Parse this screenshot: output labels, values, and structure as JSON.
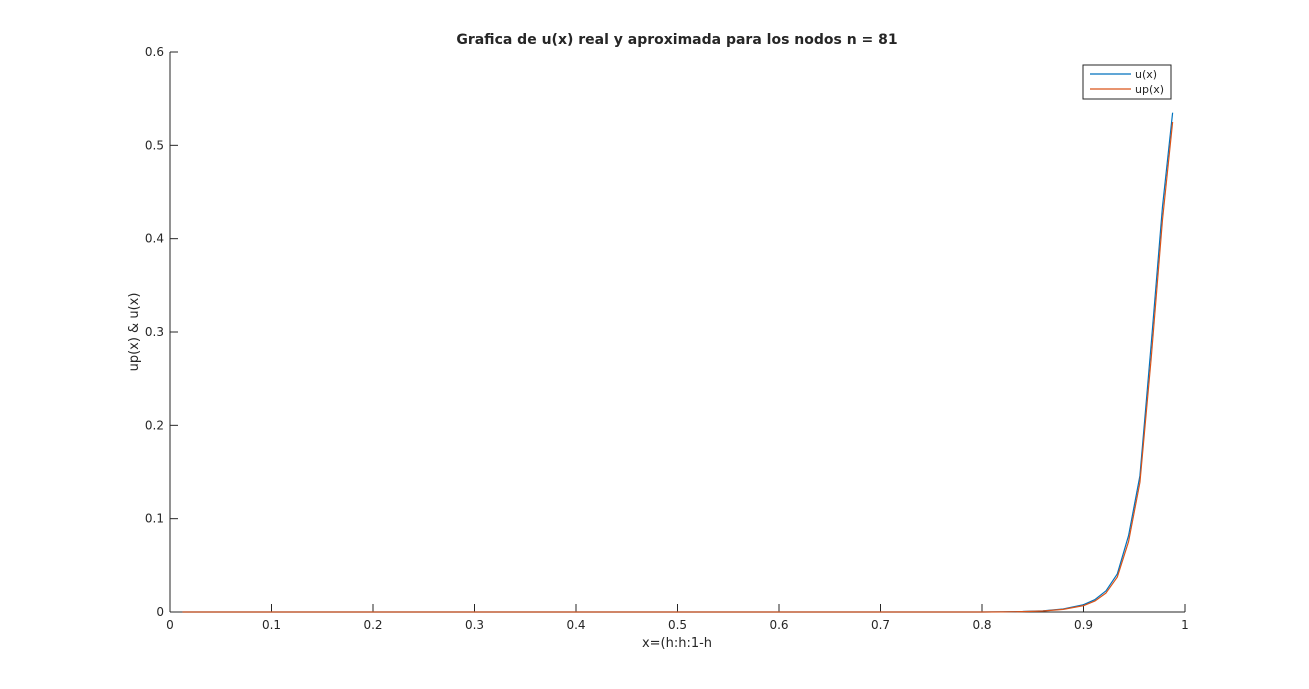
{
  "chart_data": {
    "type": "line",
    "title": "Grafica de u(x) real y aproximada para los nodos n = 81",
    "xlabel": "x=(h:h:1-h",
    "ylabel": "up(x) & u(x)",
    "xlim": [
      0,
      1
    ],
    "ylim": [
      0,
      0.6
    ],
    "xticks": [
      0,
      0.1,
      0.2,
      0.3,
      0.4,
      0.5,
      0.6,
      0.7,
      0.8,
      0.9,
      1
    ],
    "xtick_labels": [
      "0",
      "0.1",
      "0.2",
      "0.3",
      "0.4",
      "0.5",
      "0.6",
      "0.7",
      "0.8",
      "0.9",
      "1"
    ],
    "yticks": [
      0,
      0.1,
      0.2,
      0.3,
      0.4,
      0.5,
      0.6
    ],
    "ytick_labels": [
      "0",
      "0.1",
      "0.2",
      "0.3",
      "0.4",
      "0.5",
      "0.6"
    ],
    "grid": false,
    "legend_position": "top-right",
    "series": [
      {
        "name": "u(x)",
        "color": "#0072BD",
        "x": [
          0.0122,
          0.8,
          0.82,
          0.84,
          0.86,
          0.88,
          0.9,
          0.9111,
          0.9222,
          0.9333,
          0.9444,
          0.9556,
          0.9667,
          0.9778,
          0.9878
        ],
        "y": [
          0,
          0,
          0.0002,
          0.0005,
          0.0013,
          0.0032,
          0.0078,
          0.0132,
          0.0227,
          0.0408,
          0.0819,
          0.146,
          0.287,
          0.434,
          0.535
        ]
      },
      {
        "name": "up(x)",
        "color": "#D95319",
        "x": [
          0.0122,
          0.8,
          0.82,
          0.84,
          0.86,
          0.88,
          0.9,
          0.9111,
          0.9222,
          0.9333,
          0.9444,
          0.9556,
          0.9667,
          0.9778,
          0.9878
        ],
        "y": [
          0,
          0,
          0.0001,
          0.0004,
          0.0011,
          0.0028,
          0.0068,
          0.0117,
          0.0204,
          0.0374,
          0.0755,
          0.139,
          0.272,
          0.42,
          0.525
        ]
      }
    ]
  }
}
